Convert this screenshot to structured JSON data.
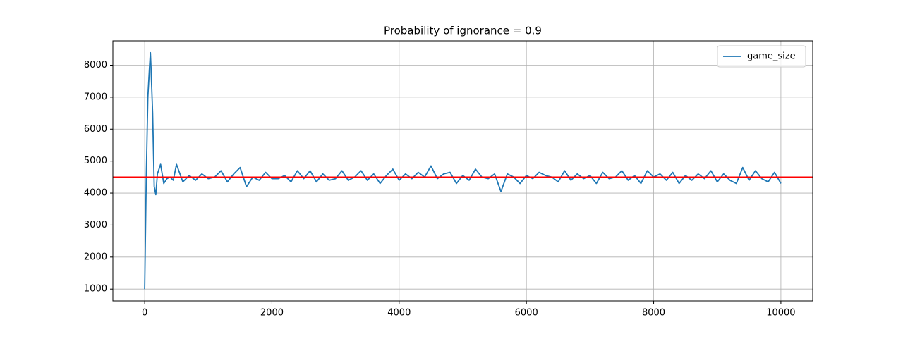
{
  "chart_data": {
    "type": "line",
    "title": "Probability of ignorance = 0.9",
    "x": [
      0,
      25,
      50,
      75,
      90,
      100,
      125,
      150,
      175,
      200,
      250,
      300,
      350,
      400,
      450,
      500,
      600,
      700,
      800,
      900,
      1000,
      1100,
      1200,
      1300,
      1400,
      1500,
      1600,
      1700,
      1800,
      1900,
      2000,
      2100,
      2200,
      2300,
      2400,
      2500,
      2600,
      2700,
      2800,
      2900,
      3000,
      3100,
      3200,
      3300,
      3400,
      3500,
      3600,
      3700,
      3800,
      3900,
      4000,
      4100,
      4200,
      4300,
      4400,
      4500,
      4600,
      4700,
      4800,
      4900,
      5000,
      5100,
      5200,
      5300,
      5400,
      5500,
      5600,
      5700,
      5800,
      5900,
      6000,
      6100,
      6200,
      6300,
      6400,
      6500,
      6600,
      6700,
      6800,
      6900,
      7000,
      7100,
      7200,
      7300,
      7400,
      7500,
      7600,
      7700,
      7800,
      7900,
      8000,
      8100,
      8200,
      8300,
      8400,
      8500,
      8600,
      8700,
      8800,
      8900,
      9000,
      9100,
      9200,
      9300,
      9400,
      9500,
      9600,
      9700,
      9800,
      9900,
      10000
    ],
    "series": [
      {
        "name": "game_size",
        "color": "#1f77b4",
        "values": [
          1000,
          4500,
          7000,
          7900,
          8390,
          7900,
          6500,
          4200,
          3950,
          4600,
          4900,
          4300,
          4450,
          4500,
          4400,
          4900,
          4350,
          4550,
          4400,
          4600,
          4450,
          4500,
          4700,
          4350,
          4600,
          4800,
          4200,
          4500,
          4400,
          4650,
          4450,
          4450,
          4550,
          4350,
          4700,
          4450,
          4700,
          4350,
          4600,
          4400,
          4450,
          4700,
          4400,
          4500,
          4700,
          4400,
          4600,
          4300,
          4550,
          4750,
          4400,
          4600,
          4450,
          4650,
          4500,
          4850,
          4450,
          4600,
          4650,
          4300,
          4550,
          4400,
          4750,
          4500,
          4450,
          4600,
          4050,
          4600,
          4500,
          4300,
          4550,
          4450,
          4650,
          4550,
          4500,
          4350,
          4700,
          4400,
          4600,
          4450,
          4550,
          4300,
          4650,
          4450,
          4500,
          4700,
          4400,
          4550,
          4300,
          4700,
          4500,
          4600,
          4400,
          4650,
          4300,
          4550,
          4400,
          4600,
          4450,
          4700,
          4350,
          4600,
          4400,
          4300,
          4800,
          4400,
          4700,
          4450,
          4350,
          4650,
          4300
        ]
      }
    ],
    "hline": {
      "value": 4500,
      "color": "#ff0000"
    },
    "xlim": [
      -500,
      10500
    ],
    "xticks": [
      0,
      2000,
      4000,
      6000,
      8000,
      10000
    ],
    "ylim": [
      630,
      8760
    ],
    "yticks": [
      1000,
      2000,
      3000,
      4000,
      5000,
      6000,
      7000,
      8000
    ],
    "grid": true,
    "legend": "upper-right"
  }
}
